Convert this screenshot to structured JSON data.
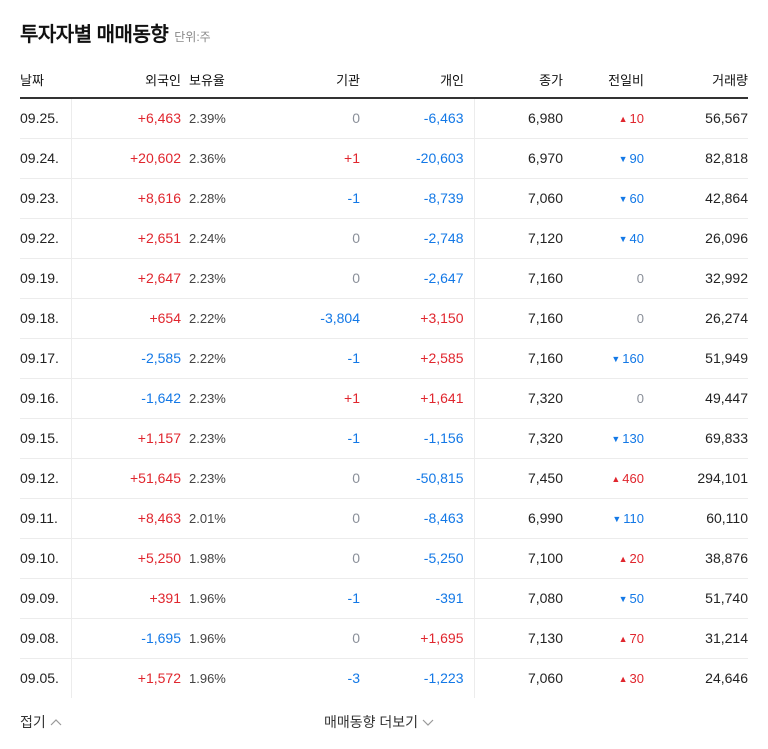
{
  "header": {
    "title": "투자자별 매매동향",
    "unit": "단위:주"
  },
  "columns": {
    "date": "날짜",
    "foreign": "외국인",
    "holding": "보유율",
    "institution": "기관",
    "individual": "개인",
    "close": "종가",
    "change": "전일비",
    "volume": "거래량"
  },
  "colors": {
    "up": "#e0262e",
    "down": "#1378e6",
    "flat": "#8a8f99"
  },
  "rows": [
    {
      "date": "09.25.",
      "foreign": "+6,463",
      "foreign_dir": "up",
      "holding": "2.39%",
      "institution": "0",
      "institution_dir": "flat",
      "individual": "-6,463",
      "individual_dir": "down",
      "close": "6,980",
      "change_icon": "▲",
      "change": "10",
      "change_dir": "up",
      "volume": "56,567"
    },
    {
      "date": "09.24.",
      "foreign": "+20,602",
      "foreign_dir": "up",
      "holding": "2.36%",
      "institution": "+1",
      "institution_dir": "up",
      "individual": "-20,603",
      "individual_dir": "down",
      "close": "6,970",
      "change_icon": "▼",
      "change": "90",
      "change_dir": "down",
      "volume": "82,818"
    },
    {
      "date": "09.23.",
      "foreign": "+8,616",
      "foreign_dir": "up",
      "holding": "2.28%",
      "institution": "-1",
      "institution_dir": "down",
      "individual": "-8,739",
      "individual_dir": "down",
      "close": "7,060",
      "change_icon": "▼",
      "change": "60",
      "change_dir": "down",
      "volume": "42,864"
    },
    {
      "date": "09.22.",
      "foreign": "+2,651",
      "foreign_dir": "up",
      "holding": "2.24%",
      "institution": "0",
      "institution_dir": "flat",
      "individual": "-2,748",
      "individual_dir": "down",
      "close": "7,120",
      "change_icon": "▼",
      "change": "40",
      "change_dir": "down",
      "volume": "26,096"
    },
    {
      "date": "09.19.",
      "foreign": "+2,647",
      "foreign_dir": "up",
      "holding": "2.23%",
      "institution": "0",
      "institution_dir": "flat",
      "individual": "-2,647",
      "individual_dir": "down",
      "close": "7,160",
      "change_icon": "",
      "change": "0",
      "change_dir": "flat",
      "volume": "32,992"
    },
    {
      "date": "09.18.",
      "foreign": "+654",
      "foreign_dir": "up",
      "holding": "2.22%",
      "institution": "-3,804",
      "institution_dir": "down",
      "individual": "+3,150",
      "individual_dir": "up",
      "close": "7,160",
      "change_icon": "",
      "change": "0",
      "change_dir": "flat",
      "volume": "26,274"
    },
    {
      "date": "09.17.",
      "foreign": "-2,585",
      "foreign_dir": "down",
      "holding": "2.22%",
      "institution": "-1",
      "institution_dir": "down",
      "individual": "+2,585",
      "individual_dir": "up",
      "close": "7,160",
      "change_icon": "▼",
      "change": "160",
      "change_dir": "down",
      "volume": "51,949"
    },
    {
      "date": "09.16.",
      "foreign": "-1,642",
      "foreign_dir": "down",
      "holding": "2.23%",
      "institution": "+1",
      "institution_dir": "up",
      "individual": "+1,641",
      "individual_dir": "up",
      "close": "7,320",
      "change_icon": "",
      "change": "0",
      "change_dir": "flat",
      "volume": "49,447"
    },
    {
      "date": "09.15.",
      "foreign": "+1,157",
      "foreign_dir": "up",
      "holding": "2.23%",
      "institution": "-1",
      "institution_dir": "down",
      "individual": "-1,156",
      "individual_dir": "down",
      "close": "7,320",
      "change_icon": "▼",
      "change": "130",
      "change_dir": "down",
      "volume": "69,833"
    },
    {
      "date": "09.12.",
      "foreign": "+51,645",
      "foreign_dir": "up",
      "holding": "2.23%",
      "institution": "0",
      "institution_dir": "flat",
      "individual": "-50,815",
      "individual_dir": "down",
      "close": "7,450",
      "change_icon": "▲",
      "change": "460",
      "change_dir": "up",
      "volume": "294,101"
    },
    {
      "date": "09.11.",
      "foreign": "+8,463",
      "foreign_dir": "up",
      "holding": "2.01%",
      "institution": "0",
      "institution_dir": "flat",
      "individual": "-8,463",
      "individual_dir": "down",
      "close": "6,990",
      "change_icon": "▼",
      "change": "110",
      "change_dir": "down",
      "volume": "60,110"
    },
    {
      "date": "09.10.",
      "foreign": "+5,250",
      "foreign_dir": "up",
      "holding": "1.98%",
      "institution": "0",
      "institution_dir": "flat",
      "individual": "-5,250",
      "individual_dir": "down",
      "close": "7,100",
      "change_icon": "▲",
      "change": "20",
      "change_dir": "up",
      "volume": "38,876"
    },
    {
      "date": "09.09.",
      "foreign": "+391",
      "foreign_dir": "up",
      "holding": "1.96%",
      "institution": "-1",
      "institution_dir": "down",
      "individual": "-391",
      "individual_dir": "down",
      "close": "7,080",
      "change_icon": "▼",
      "change": "50",
      "change_dir": "down",
      "volume": "51,740"
    },
    {
      "date": "09.08.",
      "foreign": "-1,695",
      "foreign_dir": "down",
      "holding": "1.96%",
      "institution": "0",
      "institution_dir": "flat",
      "individual": "+1,695",
      "individual_dir": "up",
      "close": "7,130",
      "change_icon": "▲",
      "change": "70",
      "change_dir": "up",
      "volume": "31,214"
    },
    {
      "date": "09.05.",
      "foreign": "+1,572",
      "foreign_dir": "up",
      "holding": "1.96%",
      "institution": "-3",
      "institution_dir": "down",
      "individual": "-1,223",
      "individual_dir": "down",
      "close": "7,060",
      "change_icon": "▲",
      "change": "30",
      "change_dir": "up",
      "volume": "24,646"
    }
  ],
  "footer": {
    "collapse_label": "접기",
    "more_label": "매매동향 더보기"
  }
}
